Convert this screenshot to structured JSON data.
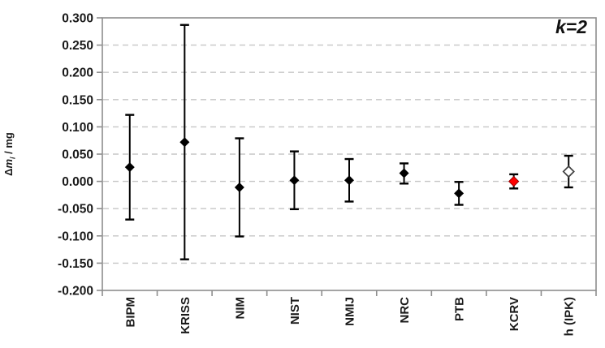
{
  "chart_data": {
    "type": "scatter",
    "title": "",
    "annotation": "k=2",
    "ylabel": "Δmᵢ / mg",
    "ylabel_parts": {
      "prefix": "Δ",
      "symbol": "m",
      "subscript": "i",
      "suffix": " / mg"
    },
    "xlabel": "",
    "ylim": [
      -0.2,
      0.3
    ],
    "ytick_step": 0.05,
    "ytick_labels": [
      "0.300",
      "0.250",
      "0.200",
      "0.150",
      "0.100",
      "0.050",
      "0.000",
      "-0.050",
      "-0.100",
      "-0.150",
      "-0.200"
    ],
    "grid": "horizontal-dashed",
    "legend": "none",
    "categories": [
      "BIPM",
      "KRISS",
      "NIM",
      "NIST",
      "NMIJ",
      "NRC",
      "PTB",
      "KCRV",
      "h (IPK)"
    ],
    "series": [
      {
        "name": "BIPM",
        "value": 0.026,
        "upper": 0.122,
        "lower": -0.07,
        "marker": "filled-black-diamond"
      },
      {
        "name": "KRISS",
        "value": 0.072,
        "upper": 0.287,
        "lower": -0.143,
        "marker": "filled-black-diamond"
      },
      {
        "name": "NIM",
        "value": -0.011,
        "upper": 0.079,
        "lower": -0.101,
        "marker": "filled-black-diamond"
      },
      {
        "name": "NIST",
        "value": 0.002,
        "upper": 0.055,
        "lower": -0.051,
        "marker": "filled-black-diamond"
      },
      {
        "name": "NMIJ",
        "value": 0.002,
        "upper": 0.041,
        "lower": -0.037,
        "marker": "filled-black-diamond"
      },
      {
        "name": "NRC",
        "value": 0.015,
        "upper": 0.033,
        "lower": -0.004,
        "marker": "filled-black-diamond"
      },
      {
        "name": "PTB",
        "value": -0.022,
        "upper": -0.001,
        "lower": -0.043,
        "marker": "filled-black-diamond"
      },
      {
        "name": "KCRV",
        "value": 0.0,
        "upper": 0.013,
        "lower": -0.013,
        "marker": "filled-red-diamond"
      },
      {
        "name": "h (IPK)",
        "value": 0.018,
        "upper": 0.047,
        "lower": -0.011,
        "marker": "open-white-diamond"
      }
    ],
    "colors": {
      "marker_default": "#000000",
      "kcrv_fill": "#ff0000",
      "kcrv_stroke": "#990000",
      "ipk_fill": "#ffffff",
      "ipk_stroke": "#404040",
      "error_bar": "#000000",
      "axis": "#8e8e8e",
      "gridline": "#c6c6c6",
      "text": "#1a1a1a",
      "background": "#ffffff"
    }
  }
}
